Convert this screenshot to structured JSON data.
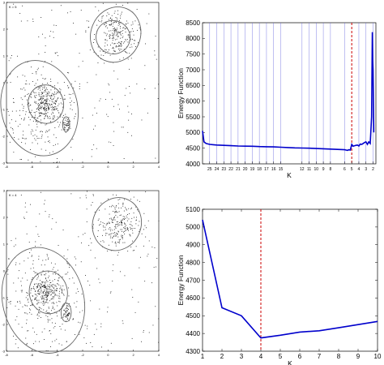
{
  "chart_data": [
    {
      "type": "scatter",
      "title": "",
      "label": "K = 5",
      "xticks": [
        "-8",
        "-6",
        "-4",
        "-2",
        "0",
        "2",
        "4"
      ],
      "yticks": [
        "3",
        "2",
        "1",
        "0",
        "-1",
        "-2",
        "-3"
      ],
      "xlim": [
        -8,
        4
      ],
      "ylim": [
        -3,
        3
      ],
      "clusters": [
        {
          "cx": -5.4,
          "cy": -0.95,
          "rx": 3.0,
          "ry": 1.8,
          "angle": -14
        },
        {
          "cx": 0.6,
          "cy": 1.8,
          "rx": 1.95,
          "ry": 1.05,
          "angle": 22
        },
        {
          "cx": -4.9,
          "cy": -0.8,
          "rx": 1.4,
          "ry": 0.72,
          "angle": -10
        },
        {
          "cx": 0.4,
          "cy": 1.7,
          "rx": 1.35,
          "ry": 0.62,
          "angle": 20
        },
        {
          "cx": -3.3,
          "cy": -1.55,
          "rx": 0.28,
          "ry": 0.28,
          "angle": 0
        }
      ]
    },
    {
      "type": "line",
      "title": "",
      "xlabel": "K",
      "ylabel": "Energy Function",
      "ylim": [
        4000,
        8500
      ],
      "yticks": [
        4000,
        4500,
        5000,
        5500,
        6000,
        6500,
        7000,
        7500,
        8000,
        8500
      ],
      "xtick_labels": [
        "25",
        "24",
        "23",
        "22",
        "21",
        "20",
        "19",
        "18",
        "17",
        "16",
        "15",
        "12",
        "11",
        "10",
        "9",
        "8",
        "6",
        "5",
        "4",
        "3",
        "2"
      ],
      "x_reversed": true,
      "selected_k": 5,
      "kmax": 26,
      "series": [
        {
          "x": [
            26,
            25.8,
            25.5,
            25,
            24.5,
            24,
            23,
            22,
            21,
            20,
            19,
            18,
            17,
            16,
            15,
            14,
            13,
            12,
            11,
            10,
            9,
            8,
            7,
            6,
            5.8,
            5.6,
            5.4,
            5.2,
            5,
            4.8,
            4.6,
            4.4,
            4.2,
            4,
            3.8,
            3.6,
            3.4,
            3.2,
            3,
            2.8,
            2.6,
            2.4,
            2.2,
            2.1,
            2.05,
            2,
            1.9
          ],
          "values": [
            5050,
            4700,
            4650,
            4620,
            4610,
            4600,
            4590,
            4580,
            4570,
            4565,
            4560,
            4550,
            4545,
            4540,
            4530,
            4520,
            4510,
            4505,
            4500,
            4490,
            4480,
            4470,
            4460,
            4450,
            4440,
            4430,
            4450,
            4440,
            4620,
            4560,
            4580,
            4590,
            4600,
            4570,
            4630,
            4620,
            4650,
            4680,
            4700,
            4620,
            4700,
            4650,
            5500,
            8200,
            7300,
            7000,
            5000
          ]
        }
      ]
    },
    {
      "type": "scatter",
      "title": "",
      "label": "K = 4",
      "xticks": [
        "-8",
        "-6",
        "-4",
        "-2",
        "0",
        "2",
        "4"
      ],
      "yticks": [
        "3",
        "2",
        "1",
        "0",
        "-1",
        "-2",
        "-3"
      ],
      "xlim": [
        -8,
        4
      ],
      "ylim": [
        -3,
        3
      ],
      "clusters": [
        {
          "cx": -5.1,
          "cy": -1.1,
          "rx": 3.2,
          "ry": 2.0,
          "angle": -14
        },
        {
          "cx": 0.7,
          "cy": 1.75,
          "rx": 1.9,
          "ry": 1.0,
          "angle": 22
        },
        {
          "cx": -4.7,
          "cy": -0.8,
          "rx": 1.5,
          "ry": 0.8,
          "angle": -10
        },
        {
          "cx": -3.3,
          "cy": -1.55,
          "rx": 0.4,
          "ry": 0.35,
          "angle": 0
        }
      ]
    },
    {
      "type": "line",
      "title": "",
      "xlabel": "K",
      "ylabel": "Energy Function",
      "xlim": [
        1,
        10
      ],
      "ylim": [
        4300,
        5100
      ],
      "xticks": [
        1,
        2,
        3,
        4,
        5,
        6,
        7,
        8,
        9,
        10
      ],
      "yticks": [
        4300,
        4400,
        4500,
        4600,
        4700,
        4800,
        4900,
        5000,
        5100
      ],
      "selected_k": 4,
      "series": [
        {
          "x": [
            1,
            2,
            3,
            4,
            5,
            6,
            7,
            8,
            9,
            10
          ],
          "values": [
            5040,
            4545,
            4500,
            4375,
            4390,
            4408,
            4415,
            4432,
            4450,
            4468
          ]
        }
      ]
    }
  ],
  "colors": {
    "series": "#0000cc",
    "selected_k": "#cc0000",
    "grid_lines": "#6a6ae0",
    "points": "#222222",
    "ellipses": "#666666",
    "axes": "#000000"
  }
}
